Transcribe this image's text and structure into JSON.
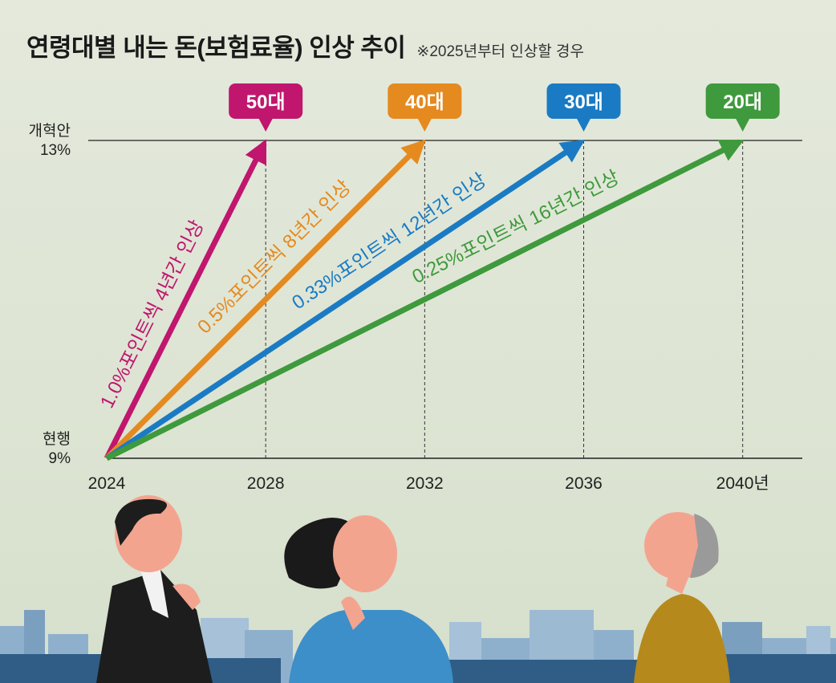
{
  "title": "연령대별 내는 돈(보험료율) 인상 추이",
  "subtitle": "※2025년부터 인상할 경우",
  "y_labels": {
    "top_line1": "개혁안",
    "top_line2": "13%",
    "bottom_line1": "현행",
    "bottom_line2": "9%"
  },
  "chart_data": {
    "type": "line",
    "ylabel": "",
    "xlabel": "",
    "x_ticks": [
      "2024",
      "2028",
      "2032",
      "2036",
      "2040년"
    ],
    "x_tick_values": [
      2024,
      2028,
      2032,
      2036,
      2040
    ],
    "xlim": [
      2024,
      2041.5
    ],
    "ylim": [
      9,
      13
    ],
    "series": [
      {
        "name": "50대",
        "label": "1.0%포인트씩 4년간 인상",
        "color": "#c0166e",
        "x": [
          2024,
          2028
        ],
        "y": [
          9,
          13
        ]
      },
      {
        "name": "40대",
        "label": "0.5%포인트씩 8년간 인상",
        "color": "#e58a1f",
        "x": [
          2024,
          2032
        ],
        "y": [
          9,
          13
        ]
      },
      {
        "name": "30대",
        "label": "0.33%포인트씩 12년간 인상",
        "color": "#1a7bc4",
        "x": [
          2024,
          2036
        ],
        "y": [
          9,
          13
        ]
      },
      {
        "name": "20대",
        "label": "0.25%포인트씩 16년간 인상",
        "color": "#3e9a3c",
        "x": [
          2024,
          2040
        ],
        "y": [
          9,
          13
        ]
      }
    ]
  }
}
